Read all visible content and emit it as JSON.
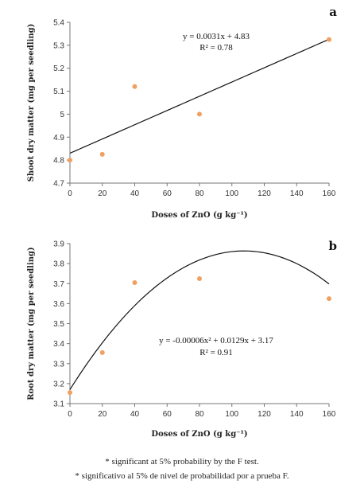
{
  "chart_data": [
    {
      "type": "scatter",
      "panel_label": "a",
      "xlabel": "Doses of ZnO (g kg⁻¹)",
      "ylabel": "Shoot dry matter (mg per seedling)",
      "xlim": [
        0,
        160
      ],
      "ylim": [
        4.7,
        5.4
      ],
      "xticks": [
        "0",
        "20",
        "40",
        "60",
        "80",
        "100",
        "120",
        "140",
        "160"
      ],
      "yticks": [
        "4.7",
        "4.8",
        "4.9",
        "5",
        "5.1",
        "5.2",
        "5.3",
        "5.4"
      ],
      "points": [
        {
          "x": 0,
          "y": 4.8
        },
        {
          "x": 20,
          "y": 4.825
        },
        {
          "x": 40,
          "y": 5.12
        },
        {
          "x": 80,
          "y": 5.0
        },
        {
          "x": 160,
          "y": 5.325
        }
      ],
      "fit": {
        "kind": "linear",
        "coef": [
          4.83,
          0.0031
        ]
      },
      "equation": "y = 0.0031x + 4.83",
      "r2": "R² = 0.78",
      "grid": false,
      "point_color": "#f0a060"
    },
    {
      "type": "scatter",
      "panel_label": "b",
      "xlabel": "Doses of ZnO (g kg⁻¹)",
      "ylabel": "Root dry matter (mg per seedling)",
      "xlim": [
        0,
        160
      ],
      "ylim": [
        3.1,
        3.9
      ],
      "xticks": [
        "0",
        "20",
        "40",
        "60",
        "80",
        "100",
        "120",
        "140",
        "160"
      ],
      "yticks": [
        "3.1",
        "3.2",
        "3.3",
        "3.4",
        "3.5",
        "3.6",
        "3.7",
        "3.8",
        "3.9"
      ],
      "points": [
        {
          "x": 0,
          "y": 3.155
        },
        {
          "x": 20,
          "y": 3.355
        },
        {
          "x": 40,
          "y": 3.705
        },
        {
          "x": 80,
          "y": 3.725
        },
        {
          "x": 160,
          "y": 3.625
        }
      ],
      "fit": {
        "kind": "quadratic",
        "coef": [
          3.17,
          0.0129,
          -6e-05
        ]
      },
      "equation": "y = -0.00006x² + 0.0129x + 3.17",
      "r2": "R² = 0.91",
      "grid": false,
      "point_color": "#f0a060"
    }
  ],
  "footnotes": {
    "en": "* significant at 5% probability by the F test.",
    "es": "* significativo al 5% de nivel de probabilidad por a prueba F."
  }
}
